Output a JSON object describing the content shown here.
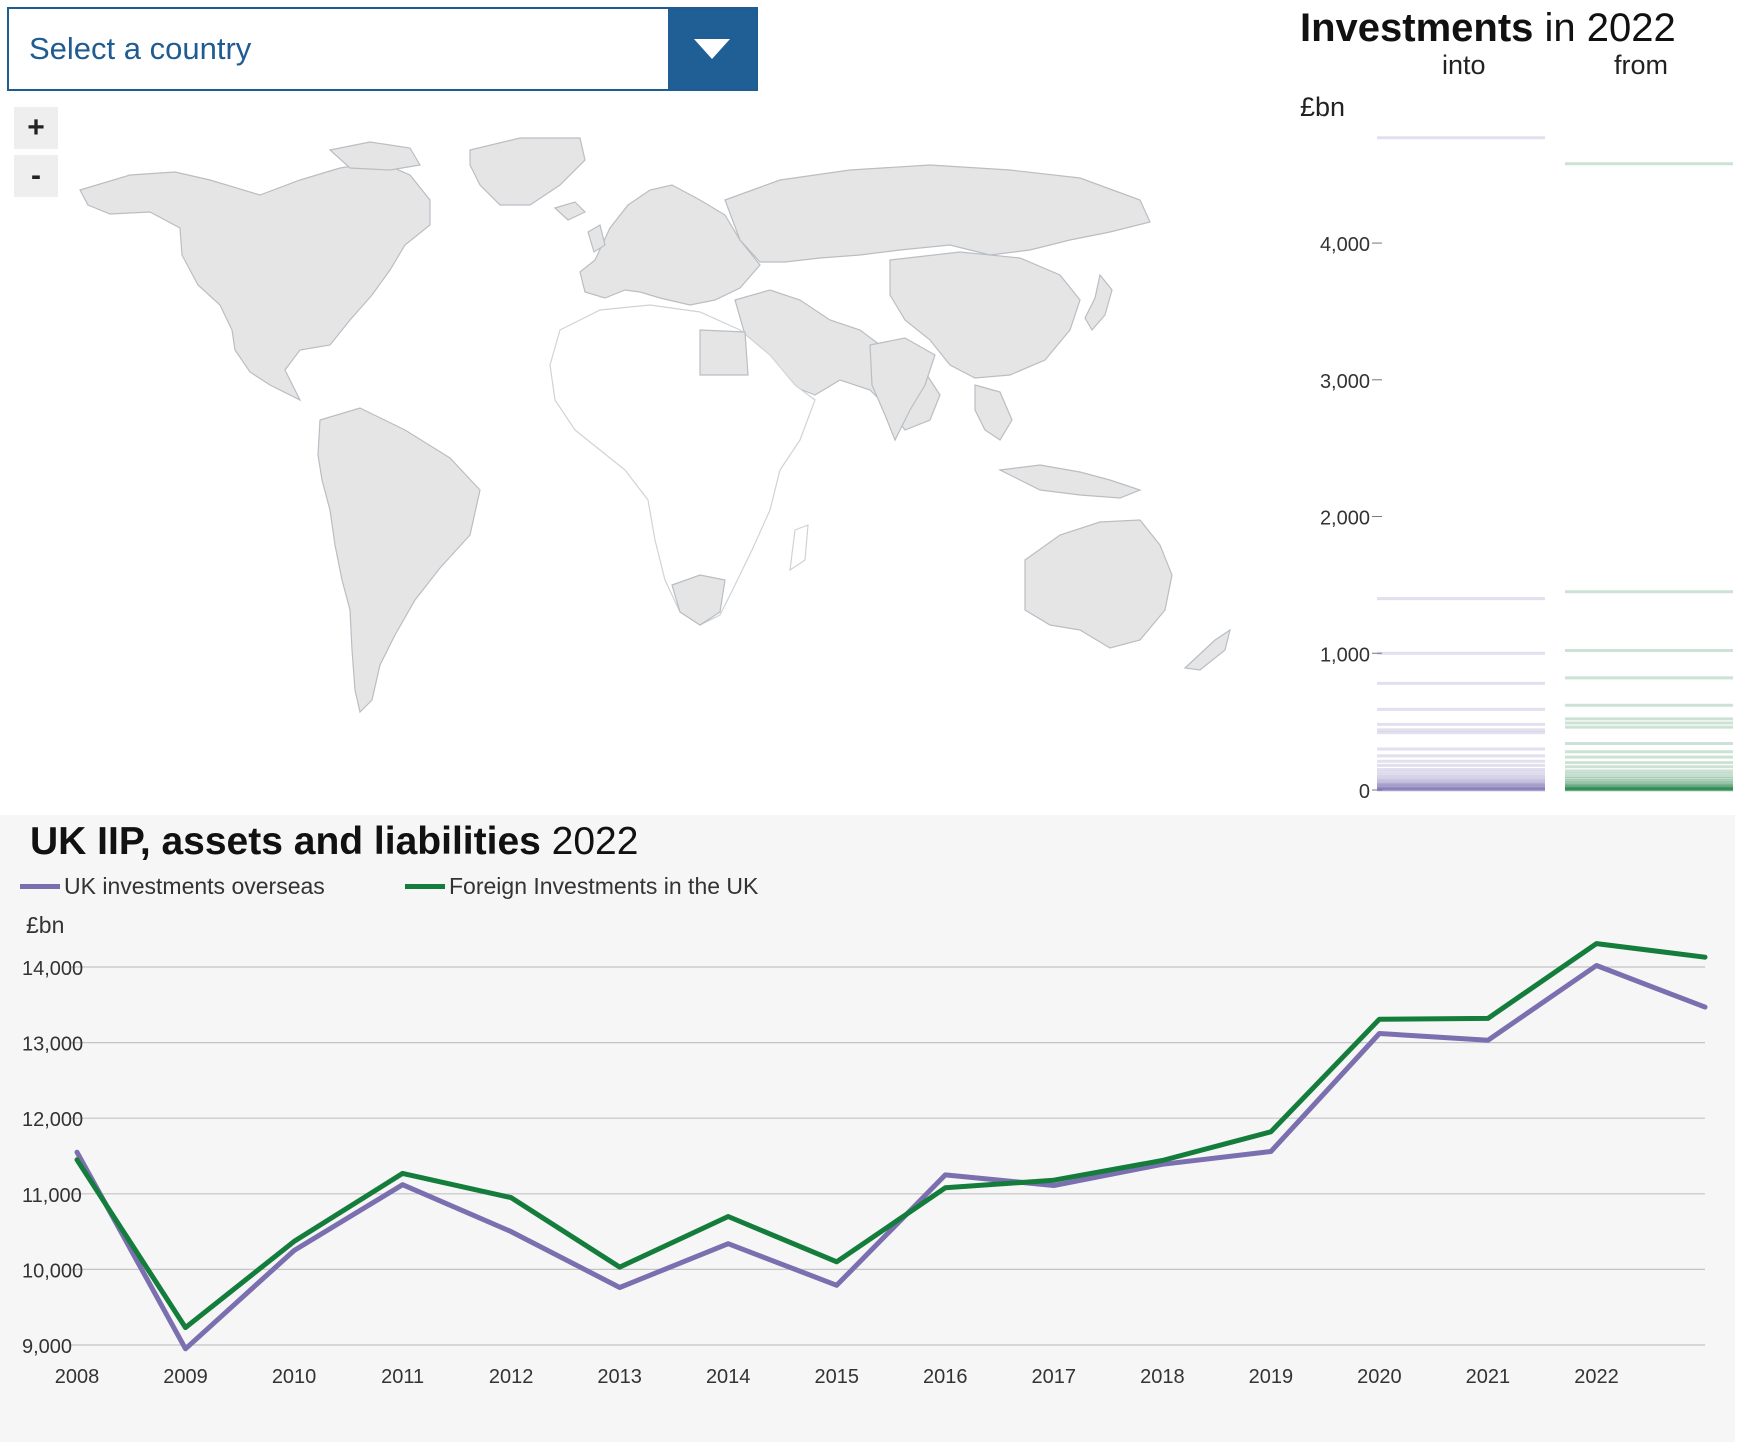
{
  "country_select": {
    "label": "Select a country",
    "icon": "chevron-down-icon",
    "accent": "#205f95"
  },
  "zoom": {
    "in_label": "+",
    "out_label": "-"
  },
  "investments": {
    "title_bold": "Investments",
    "title_rest": " in 2022",
    "col_into": "into",
    "col_from": "from",
    "unit": "£bn"
  },
  "line": {
    "title_bold": "UK IIP, assets and liabilities",
    "title_rest": " 2022",
    "unit": "£bn",
    "legend": [
      {
        "name": "UK investments overseas",
        "color": "#7b6fb0"
      },
      {
        "name": "Foreign Investments in the UK",
        "color": "#147d3c"
      }
    ]
  },
  "chart_data": [
    {
      "type": "strip",
      "ylim": [
        0,
        4900
      ],
      "yticks": [
        0,
        1000,
        2000,
        3000,
        4000
      ],
      "ytick_labels": [
        "0",
        "1,000",
        "2,000",
        "3,000",
        "4,000"
      ],
      "grid": false,
      "series": [
        {
          "name": "into",
          "color": "#7b6fb0",
          "values": [
            4770,
            1400,
            1000,
            780,
            590,
            480,
            440,
            420,
            300,
            250,
            210,
            180,
            150,
            130,
            110,
            95,
            80,
            70,
            60,
            50,
            45,
            40,
            35,
            30,
            25,
            20,
            15,
            12,
            10,
            8,
            5,
            3,
            2,
            1
          ]
        },
        {
          "name": "from",
          "color": "#147d3c",
          "values": [
            4580,
            1450,
            1020,
            820,
            620,
            520,
            490,
            460,
            340,
            280,
            240,
            200,
            170,
            140,
            120,
            100,
            85,
            70,
            60,
            50,
            42,
            35,
            30,
            25,
            20,
            15,
            12,
            10,
            8,
            5,
            3,
            2,
            1
          ]
        }
      ]
    },
    {
      "type": "line",
      "x": [
        2008,
        2009,
        2010,
        2011,
        2012,
        2013,
        2014,
        2015,
        2016,
        2017,
        2018,
        2019,
        2020,
        2021,
        2022,
        2023
      ],
      "xtick_labels": [
        "2008",
        "2009",
        "2010",
        "2011",
        "2012",
        "2013",
        "2014",
        "2015",
        "2016",
        "2017",
        "2018",
        "2019",
        "2020",
        "2021",
        "2022"
      ],
      "ylim": [
        9000,
        14400
      ],
      "yticks": [
        9000,
        10000,
        11000,
        12000,
        13000,
        14000
      ],
      "ytick_labels": [
        "9,000",
        "10,000",
        "11,000",
        "12,000",
        "13,000",
        "14,000"
      ],
      "grid": true,
      "series": [
        {
          "name": "UK investments overseas",
          "color": "#7b6fb0",
          "values": [
            11550,
            8950,
            10250,
            11120,
            10500,
            9760,
            10340,
            9790,
            11250,
            11110,
            11390,
            11560,
            13120,
            13030,
            14020,
            13470
          ]
        },
        {
          "name": "Foreign Investments in the UK",
          "color": "#147d3c",
          "values": [
            11450,
            9230,
            10370,
            11270,
            10950,
            10030,
            10700,
            10100,
            11080,
            11180,
            11440,
            11820,
            13310,
            13320,
            14310,
            14130
          ]
        }
      ]
    }
  ]
}
